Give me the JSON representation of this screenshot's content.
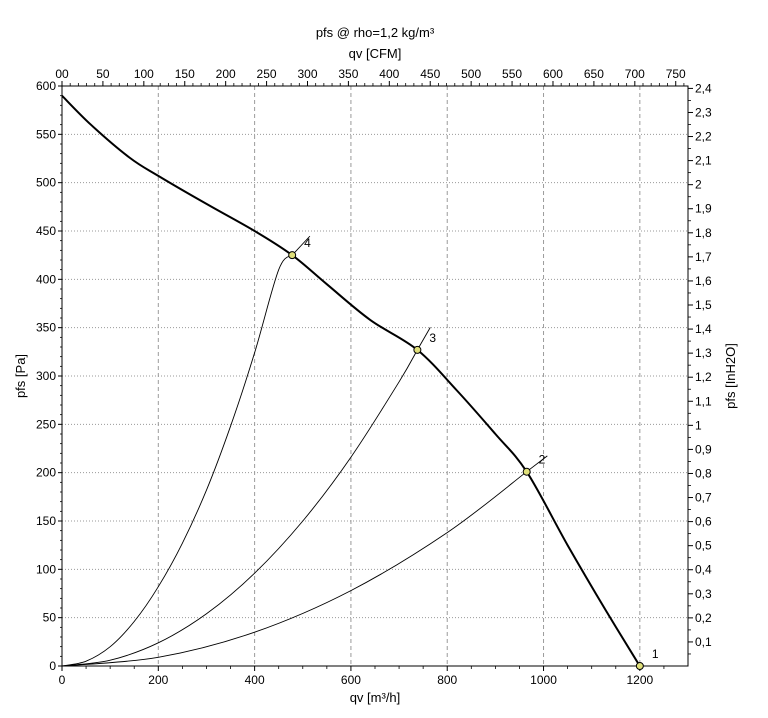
{
  "chart_data": {
    "type": "line",
    "title": "pfs @ rho=1,2 kg/m³",
    "xlabel": "qv [m³/h]",
    "ylabel": "pfs [Pa]",
    "x2label": "qv [CFM]",
    "y2label": "pfs [InH2O]",
    "xlim": [
      0,
      1300
    ],
    "ylim": [
      0,
      600
    ],
    "x2lim": [
      0,
      765
    ],
    "y2lim": [
      0,
      2.41
    ],
    "xticks": [
      "0",
      "200",
      "400",
      "600",
      "800",
      "1000",
      "1200"
    ],
    "yticks": [
      "0",
      "50",
      "100",
      "150",
      "200",
      "250",
      "300",
      "350",
      "400",
      "450",
      "500",
      "550",
      "600"
    ],
    "x2ticks": [
      "00",
      "50",
      "100",
      "150",
      "200",
      "250",
      "300",
      "350",
      "400",
      "450",
      "500",
      "550",
      "600",
      "650",
      "700",
      "750"
    ],
    "y2ticks": [
      "0,1",
      "0,2",
      "0,3",
      "0,4",
      "0,5",
      "0,6",
      "0,7",
      "0,8",
      "0,9",
      "1",
      "1,1",
      "1,2",
      "1,3",
      "1,4",
      "1,5",
      "1,6",
      "1,7",
      "1,8",
      "1,9",
      "2",
      "2,1",
      "2,2",
      "2,3",
      "2,4"
    ],
    "grid": true,
    "fan_curve": {
      "x": [
        0,
        60,
        140,
        200,
        300,
        400,
        478,
        550,
        640,
        738,
        820,
        900,
        965,
        1050,
        1130,
        1200
      ],
      "y": [
        590,
        560,
        526,
        507,
        478,
        450,
        425,
        395,
        358,
        327,
        285,
        240,
        201,
        125,
        57,
        0
      ]
    },
    "system_curves": [
      {
        "label": "4",
        "x": [
          0,
          50,
          100,
          150,
          200,
          250,
          300,
          350,
          400,
          450,
          478
        ],
        "y": [
          0,
          5,
          20,
          46,
          82,
          127,
          182,
          248,
          324,
          410,
          425
        ]
      },
      {
        "label": "3",
        "x": [
          0,
          100,
          200,
          300,
          400,
          500,
          600,
          700,
          738
        ],
        "y": [
          0,
          6,
          24,
          54,
          96,
          150,
          216,
          294,
          327
        ]
      },
      {
        "label": "2",
        "x": [
          0,
          200,
          400,
          600,
          800,
          965
        ],
        "y": [
          0,
          9,
          35,
          78,
          138,
          201
        ]
      }
    ],
    "operating_points": [
      {
        "label": "1",
        "x": 1200,
        "y": 0
      },
      {
        "label": "2",
        "x": 965,
        "y": 201
      },
      {
        "label": "3",
        "x": 738,
        "y": 327
      },
      {
        "label": "4",
        "x": 478,
        "y": 425
      }
    ]
  }
}
